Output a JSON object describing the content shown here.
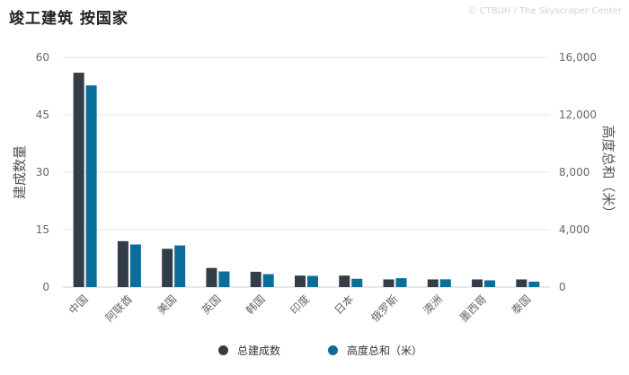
{
  "header": {
    "title": "竣工建筑 按国家",
    "credit": "© CTBUH / The Skyscraper Center"
  },
  "chart_data": {
    "type": "bar",
    "categories": [
      "中国",
      "阿联酋",
      "美国",
      "英国",
      "韩国",
      "印度",
      "日本",
      "俄罗斯",
      "澳洲",
      "墨西哥",
      "泰国"
    ],
    "series": [
      {
        "name": "总建成数",
        "axis": "left",
        "color": "#333d47",
        "values": [
          56,
          12,
          10,
          5,
          4,
          3,
          3,
          2,
          2,
          2,
          2
        ]
      },
      {
        "name": "高度总和（米）",
        "axis": "right",
        "color": "#0a6d9a",
        "values": [
          14050,
          2970,
          2900,
          1090,
          900,
          780,
          580,
          620,
          540,
          470,
          380
        ]
      }
    ],
    "ylabel_left": "建成数量",
    "ylabel_right": "高度总和（米）",
    "ylim_left": [
      0,
      60
    ],
    "ylim_right": [
      0,
      16000
    ],
    "yticks_left": [
      "0",
      "15",
      "30",
      "45",
      "60"
    ],
    "yticks_right": [
      "0",
      "4,000",
      "8,000",
      "12,000",
      "16,000"
    ],
    "grid": true,
    "legend_position": "bottom"
  }
}
